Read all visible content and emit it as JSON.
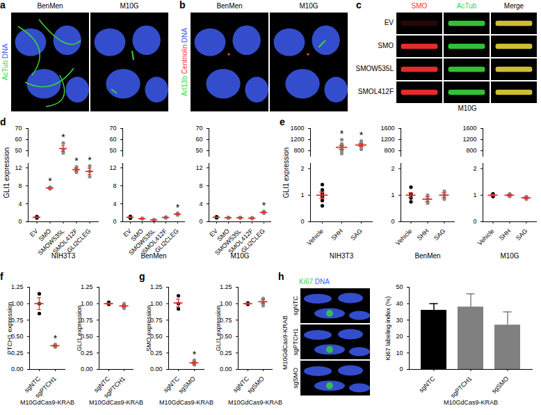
{
  "image_panels": [
    {
      "panel": "a",
      "columns": [
        "BenMen",
        "M10G"
      ],
      "channels": [
        {
          "name": "AcTub",
          "color": "#39d639"
        },
        {
          "name": "DNA",
          "color": "#4060ff"
        }
      ]
    },
    {
      "panel": "b",
      "columns": [
        "BenMen",
        "M10G"
      ],
      "channels": [
        {
          "name": "Arl13b",
          "color": "#39d639"
        },
        {
          "name": "Centriolin",
          "color": "#ff3030"
        },
        {
          "name": "DNA",
          "color": "#4060ff"
        }
      ]
    },
    {
      "panel": "c",
      "columns": [
        {
          "name": "SMO",
          "color": "#ff3030"
        },
        {
          "name": "AcTub",
          "color": "#39d639"
        },
        {
          "name": "Merge",
          "color": "#000000"
        }
      ],
      "rows": [
        "EV",
        "SMO",
        "SMOW535L",
        "SMOL412F"
      ],
      "caption": "M10G"
    },
    {
      "panel": "h",
      "channels": [
        {
          "name": "Ki67",
          "color": "#39d639"
        },
        {
          "name": "DNA",
          "color": "#4060ff"
        }
      ],
      "rows": [
        "sgNTC",
        "sgPTCH1",
        "sgSMO"
      ],
      "caption": "M10GdCas9-KRAB"
    }
  ],
  "chart_data": [
    {
      "panel": "d",
      "type": "dot",
      "title": "NIH3T3",
      "ylabel": "GLI1 expression",
      "categories": [
        "EV",
        "SMO",
        "SMOW535L",
        "SMOL412F",
        "GLI2CLEG"
      ],
      "points": [
        [
          0.85,
          1.0,
          1.15
        ],
        [
          7.3,
          7.5,
          7.7
        ],
        [
          48,
          51,
          57
        ],
        [
          11.0,
          11.6,
          12.2
        ],
        [
          10.0,
          11.2,
          12.4
        ]
      ],
      "values": [
        1.0,
        7.5,
        52,
        11.6,
        11.2
      ],
      "errors": [
        0.09,
        0.12,
        2.6,
        0.35,
        0.7
      ],
      "colors": [
        "#000000",
        "#8c8c8c",
        "#8c8c8c",
        "#8c8c8c",
        "#8c8c8c"
      ],
      "color": "#e0312b",
      "ylim": [
        0,
        70
      ],
      "y_break": [
        13,
        45
      ],
      "yticks": [
        0,
        4,
        8,
        12,
        50,
        60,
        70
      ],
      "annotations": [
        {
          "category": "SMO",
          "text": "*"
        },
        {
          "category": "SMOW535L",
          "text": "*"
        },
        {
          "category": "SMOL412F",
          "text": "*"
        },
        {
          "category": "GLI2CLEG",
          "text": "*"
        }
      ]
    },
    {
      "type": "dot",
      "title": "BenMen",
      "categories": [
        "EV",
        "SMO",
        "SMOW535L",
        "SMOL412F",
        "GLI2CLEG"
      ],
      "points": [
        [
          0.8,
          1.0,
          1.2
        ],
        [
          0.6,
          0.7,
          0.8
        ],
        [
          0.3,
          0.4,
          0.5
        ],
        [
          0.85,
          0.95,
          1.05
        ],
        [
          1.5,
          1.7,
          1.9
        ]
      ],
      "values": [
        1.0,
        0.7,
        0.4,
        0.95,
        1.7
      ],
      "errors": [
        0.1,
        0.06,
        0.06,
        0.06,
        0.12
      ],
      "colors": [
        "#000000",
        "#8c8c8c",
        "#8c8c8c",
        "#8c8c8c",
        "#8c8c8c"
      ],
      "color": "#e0312b",
      "ylim": [
        0,
        70
      ],
      "y_break": [
        13,
        45
      ],
      "yticks": [
        0,
        4,
        8,
        12,
        50,
        60,
        70
      ],
      "annotations": [
        {
          "category": "GLI2CLEG",
          "text": "*"
        }
      ]
    },
    {
      "type": "dot",
      "title": "M10G",
      "categories": [
        "EV",
        "SMO",
        "SMOW535L",
        "SMOL412F",
        "GLI2CLEG"
      ],
      "points": [
        [
          0.9,
          1.0,
          1.1
        ],
        [
          0.8,
          0.9,
          1.0
        ],
        [
          0.8,
          0.9,
          1.0
        ],
        [
          0.7,
          0.8,
          0.9
        ],
        [
          1.9,
          2.1,
          2.3
        ]
      ],
      "values": [
        1.0,
        0.9,
        0.9,
        0.8,
        2.1
      ],
      "errors": [
        0.06,
        0.06,
        0.06,
        0.06,
        0.12
      ],
      "colors": [
        "#000000",
        "#8c8c8c",
        "#8c8c8c",
        "#8c8c8c",
        "#8c8c8c"
      ],
      "color": "#e0312b",
      "ylim": [
        0,
        70
      ],
      "y_break": [
        13,
        45
      ],
      "yticks": [
        0,
        4,
        8,
        12,
        50,
        60,
        70
      ],
      "annotations": [
        {
          "category": "GLI2CLEG",
          "text": "*"
        }
      ]
    },
    {
      "panel": "e",
      "type": "dot",
      "title": "NIH3T3",
      "ylabel": "GLI1 expression",
      "categories": [
        "Vehicle",
        "SHH",
        "SAG"
      ],
      "points": [
        [
          0.6,
          0.8,
          0.95,
          1.05,
          1.2,
          1.4
        ],
        [
          700,
          780,
          850,
          950,
          1050,
          1200
        ],
        [
          850,
          920,
          980,
          1030,
          1100,
          1150
        ]
      ],
      "values": [
        1.0,
        922,
        1005
      ],
      "errors": [
        0.12,
        74,
        46
      ],
      "colors": [
        "#000000",
        "#8c8c8c",
        "#8c8c8c"
      ],
      "color": "#e0312b",
      "ylim": [
        0,
        1600
      ],
      "y_break": [
        2.2,
        600
      ],
      "yticks": [
        0,
        1,
        2,
        800,
        1200,
        1600
      ],
      "annotations": [
        {
          "category": "SHH",
          "text": "*"
        },
        {
          "category": "SAG",
          "text": "*"
        }
      ]
    },
    {
      "type": "dot",
      "title": "BenMen",
      "categories": [
        "Vehicle",
        "SHH",
        "SAG"
      ],
      "points": [
        [
          0.75,
          0.9,
          1.0,
          1.05,
          1.3
        ],
        [
          0.7,
          0.85,
          1.0
        ],
        [
          0.85,
          1.0,
          1.15
        ]
      ],
      "values": [
        1.0,
        0.85,
        1.0
      ],
      "errors": [
        0.09,
        0.09,
        0.09
      ],
      "colors": [
        "#000000",
        "#8c8c8c",
        "#8c8c8c"
      ],
      "color": "#e0312b",
      "ylim": [
        0,
        1600
      ],
      "y_break": [
        2.2,
        600
      ],
      "yticks": [
        0,
        1,
        2,
        800,
        1200,
        1600
      ]
    },
    {
      "type": "dot",
      "title": "M10G",
      "categories": [
        "Vehicle",
        "SHH",
        "SAG"
      ],
      "points": [
        [
          0.95,
          1.0,
          1.05
        ],
        [
          0.95,
          1.0,
          1.05
        ],
        [
          0.85,
          0.9,
          0.95
        ]
      ],
      "values": [
        1.0,
        1.0,
        0.9
      ],
      "errors": [
        0.03,
        0.03,
        0.03
      ],
      "colors": [
        "#000000",
        "#8c8c8c",
        "#8c8c8c"
      ],
      "color": "#e0312b",
      "ylim": [
        0,
        1600
      ],
      "y_break": [
        2.2,
        600
      ],
      "yticks": [
        0,
        1,
        2,
        800,
        1200,
        1600
      ]
    },
    {
      "panel": "f",
      "type": "dot",
      "ylabel": "PTCH1 expression",
      "xlabel": "M10GdCas9-KRAB",
      "categories": [
        "sgNTC",
        "sgPTCH1"
      ],
      "points": [
        [
          0.85,
          1.0,
          1.15
        ],
        [
          0.34,
          0.36,
          0.38
        ]
      ],
      "values": [
        1.0,
        0.36
      ],
      "errors": [
        0.09,
        0.01
      ],
      "colors": [
        "#000000",
        "#8c8c8c"
      ],
      "color": "#e0312b",
      "ylim": [
        0,
        1.25
      ],
      "yticks": [
        {
          "value": 0,
          "label": "0.00"
        },
        {
          "value": 0.25,
          "label": "0.25"
        },
        {
          "value": 0.5,
          "label": "0.50"
        },
        {
          "value": 0.75,
          "label": "0.75"
        },
        {
          "value": 1,
          "label": "1.00"
        },
        {
          "value": 1.25,
          "label": "1.25"
        }
      ],
      "annotations": [
        {
          "category": "sgPTCH1",
          "text": "*"
        }
      ]
    },
    {
      "type": "dot",
      "ylabel": "GLI1 expression",
      "xlabel": "M10GdCas9-KRAB",
      "categories": [
        "sgNTC",
        "sgPTCH1"
      ],
      "points": [
        [
          0.99,
          1.0,
          1.02
        ],
        [
          0.93,
          0.95,
          0.98,
          1.0
        ]
      ],
      "values": [
        1.0,
        0.965
      ],
      "errors": [
        0.01,
        0.015
      ],
      "colors": [
        "#000000",
        "#8c8c8c"
      ],
      "color": "#e0312b",
      "ylim": [
        0,
        1.25
      ],
      "yticks": [
        {
          "value": 0,
          "label": "0.00"
        },
        {
          "value": 0.25,
          "label": "0.25"
        },
        {
          "value": 0.5,
          "label": "0.50"
        },
        {
          "value": 0.75,
          "label": "0.75"
        },
        {
          "value": 1,
          "label": "1.00"
        },
        {
          "value": 1.25,
          "label": "1.25"
        }
      ]
    },
    {
      "panel": "g",
      "type": "dot",
      "ylabel": "SMO expression",
      "xlabel": "M10GdCas9-KRAB",
      "categories": [
        "sgNTC",
        "sgSMO"
      ],
      "points": [
        [
          0.92,
          1.0,
          1.12
        ],
        [
          0.07,
          0.1,
          0.14
        ]
      ],
      "values": [
        1.01,
        0.1
      ],
      "errors": [
        0.06,
        0.02
      ],
      "colors": [
        "#000000",
        "#8c8c8c"
      ],
      "color": "#e0312b",
      "ylim": [
        0,
        1.25
      ],
      "yticks": [
        {
          "value": 0,
          "label": "0.00"
        },
        {
          "value": 0.25,
          "label": "0.25"
        },
        {
          "value": 0.5,
          "label": "0.50"
        },
        {
          "value": 0.75,
          "label": "0.75"
        },
        {
          "value": 1,
          "label": "1.00"
        },
        {
          "value": 1.25,
          "label": "1.25"
        }
      ],
      "annotations": [
        {
          "category": "sgSMO",
          "text": "*"
        }
      ]
    },
    {
      "type": "dot",
      "ylabel": "GLI1 expression",
      "xlabel": "M10GdCas9-KRAB",
      "categories": [
        "sgNTC",
        "sgSMO"
      ],
      "points": [
        [
          0.99,
          1.0,
          1.01
        ],
        [
          0.97,
          1.02,
          1.08
        ]
      ],
      "values": [
        1.0,
        1.03
      ],
      "errors": [
        0.01,
        0.03
      ],
      "colors": [
        "#000000",
        "#8c8c8c"
      ],
      "color": "#e0312b",
      "ylim": [
        0,
        1.25
      ],
      "yticks": [
        {
          "value": 0,
          "label": "0.00"
        },
        {
          "value": 0.25,
          "label": "0.25"
        },
        {
          "value": 0.5,
          "label": "0.50"
        },
        {
          "value": 0.75,
          "label": "0.75"
        },
        {
          "value": 1,
          "label": "1.00"
        },
        {
          "value": 1.25,
          "label": "1.25"
        }
      ]
    },
    {
      "type": "bar",
      "ylabel": "Ki67 labeling index (%)",
      "xlabel": "M10GdCas9-KRAB",
      "categories": [
        "sgNTC",
        "sgPTCH1",
        "sgSMO"
      ],
      "values": [
        36,
        38,
        27
      ],
      "errors": [
        4,
        8,
        8
      ],
      "colors": [
        "#000000",
        "#808080",
        "#808080"
      ],
      "ylim": [
        0,
        50
      ],
      "yticks": [
        0,
        10,
        20,
        30,
        40,
        50
      ]
    }
  ]
}
